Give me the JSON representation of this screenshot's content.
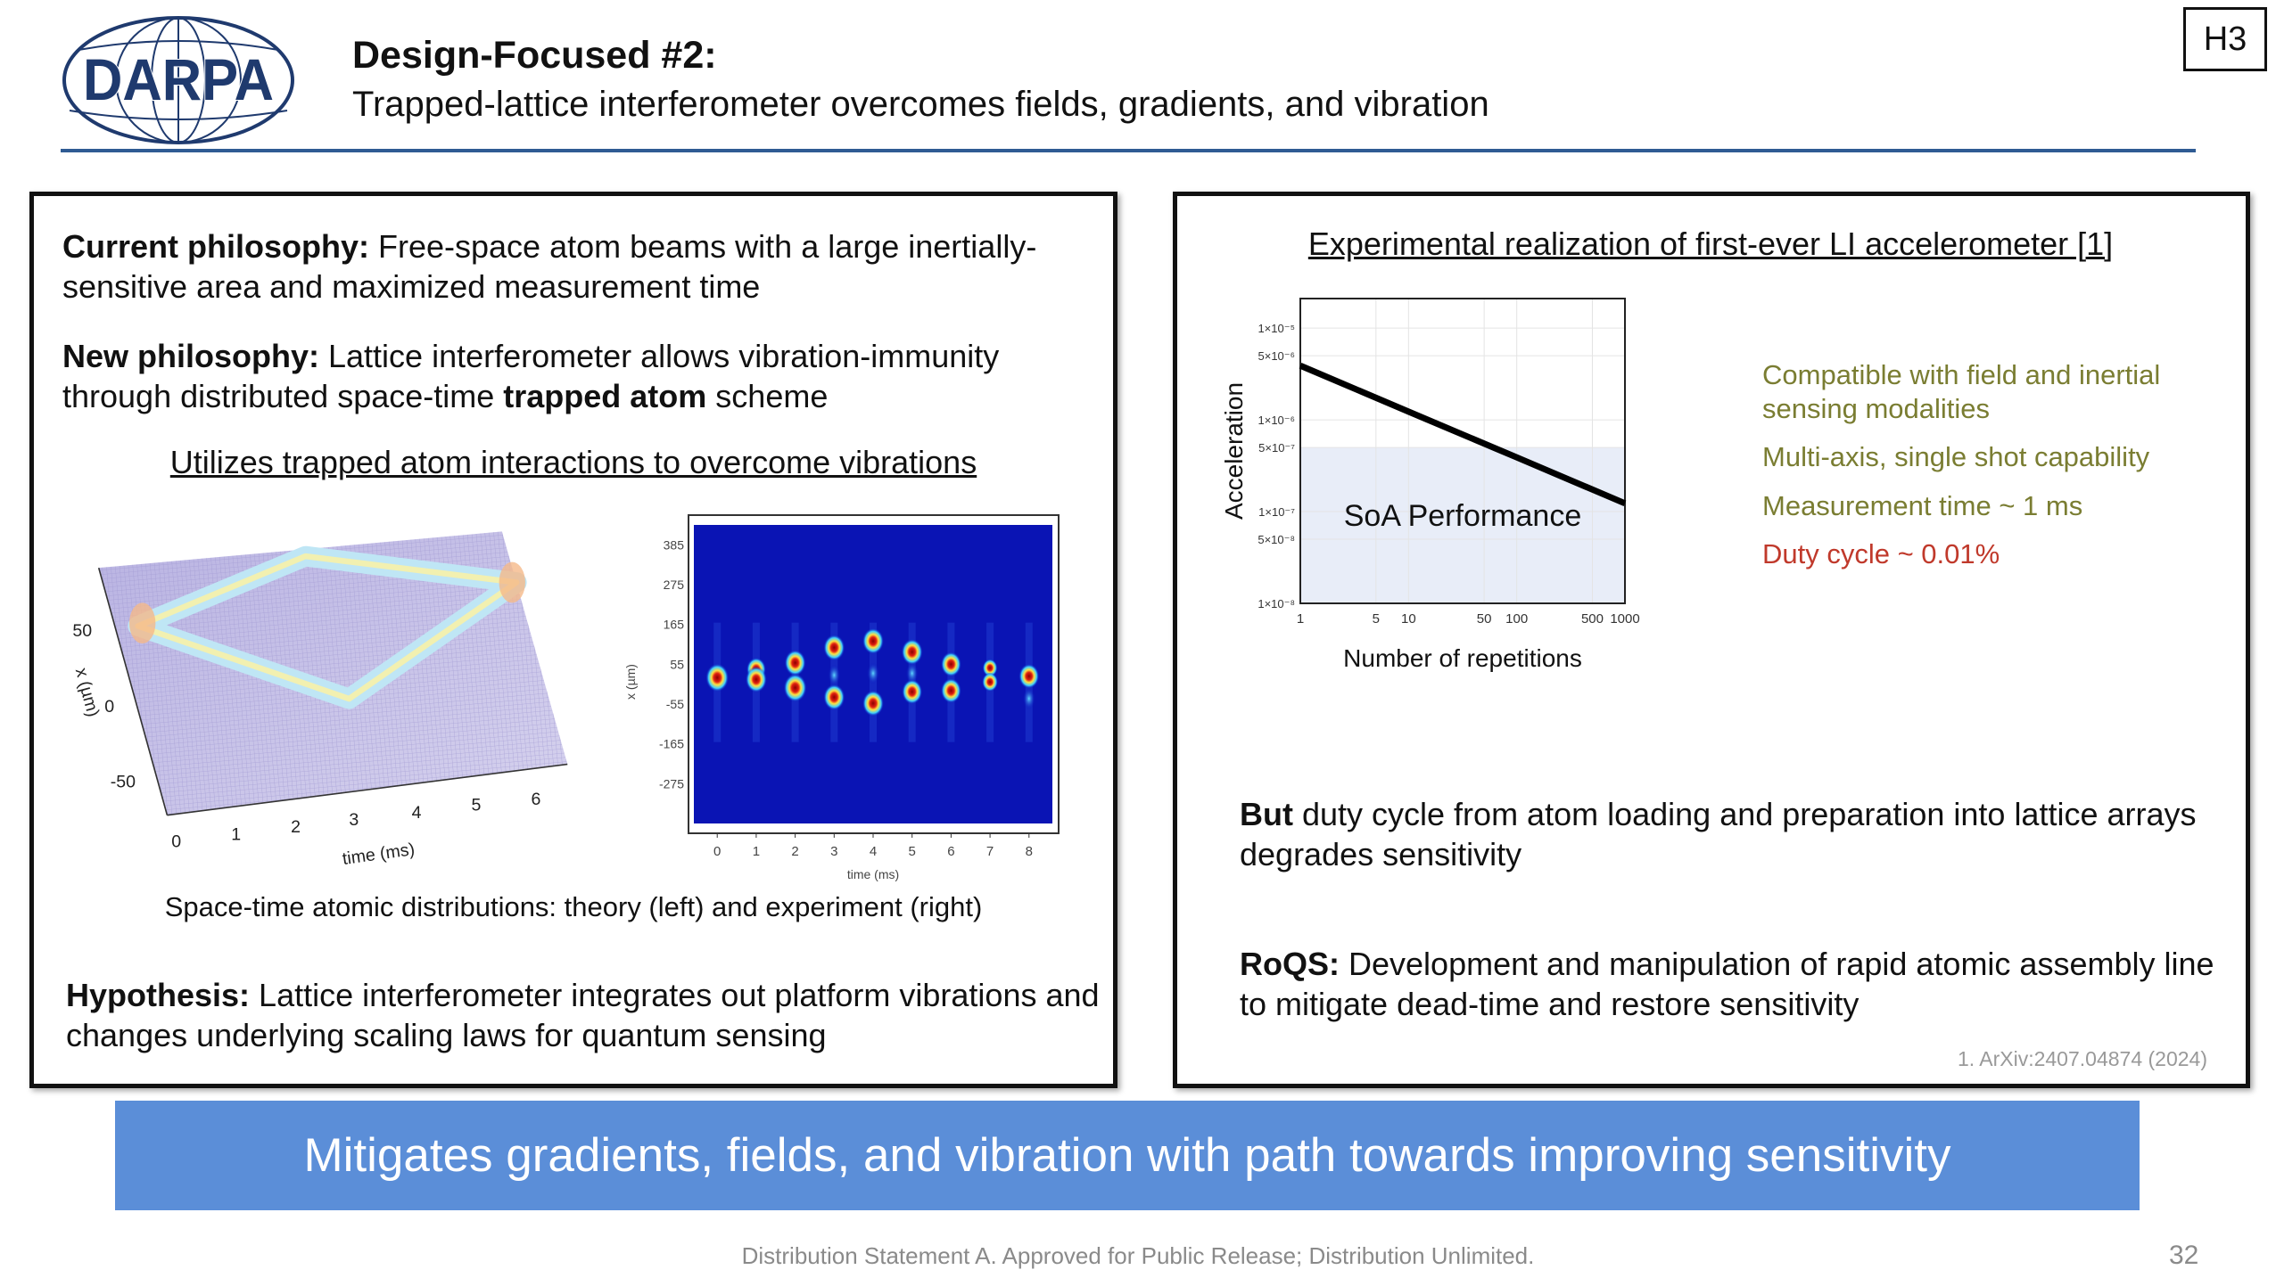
{
  "logo": {
    "text": "DARPA"
  },
  "header": {
    "title": "Design-Focused #2:",
    "subtitle": "Trapped-lattice interferometer overcomes fields, gradients, and vibration",
    "section_tag": "H3"
  },
  "left": {
    "current_label": "Current philosophy:",
    "current_text": " Free-space atom beams with a large inertially-sensitive area and maximized measurement time",
    "new_label": "New philosophy:",
    "new_text_1": " Lattice interferometer allows vibration-immunity through distributed space-time ",
    "new_bold": "trapped atom",
    "new_text_2": " scheme",
    "subheading": "Utilizes trapped atom interactions to overcome vibrations",
    "theory_plot": {
      "y_label": "x (µm)",
      "y_ticks": [
        "50",
        "0",
        "-50"
      ],
      "x_label": "time (ms)",
      "x_ticks": [
        "0",
        "1",
        "2",
        "3",
        "4",
        "5",
        "6"
      ]
    },
    "caption": "Space-time atomic distributions: theory (left) and experiment (right)",
    "hypothesis_label": "Hypothesis:",
    "hypothesis_text": " Lattice interferometer integrates out platform vibrations and changes underlying scaling laws for quantum sensing"
  },
  "right": {
    "heading": "Experimental realization of first-ever LI accelerometer [1]",
    "features": [
      {
        "text": "Compatible with field and inertial sensing modalities",
        "color": "#7a7d32"
      },
      {
        "text": "Multi-axis, single shot capability",
        "color": "#7a7d32"
      },
      {
        "text": "Measurement time ~ 1 ms",
        "color": "#7a7d32"
      },
      {
        "text": "Duty cycle ~ 0.01%",
        "color": "#c0392b"
      }
    ],
    "but_label": "But",
    "but_text": " duty cycle from atom loading and preparation into lattice arrays degrades sensitivity",
    "roqs_label": "RoQS:",
    "roqs_text": " Development and manipulation of rapid atomic assembly line to mitigate dead-time and restore sensitivity",
    "citation": "1. ArXiv:2407.04874 (2024)"
  },
  "chart_data": [
    {
      "type": "line",
      "title": "",
      "xlabel": "Number of repetitions",
      "ylabel": "Acceleration",
      "xscale": "log",
      "yscale": "log",
      "xlim": [
        1,
        1000
      ],
      "ylim": [
        1e-08,
        2.1e-05
      ],
      "x_ticks": [
        "1",
        "5",
        "10",
        "50",
        "100",
        "500",
        "1000"
      ],
      "x_tick_values": [
        1,
        5,
        10,
        50,
        100,
        500,
        1000
      ],
      "y_ticks": [
        "1×10⁻⁵",
        "5×10⁻⁶",
        "1×10⁻⁶",
        "5×10⁻⁷",
        "1×10⁻⁷",
        "5×10⁻⁸",
        "1×10⁻⁸"
      ],
      "y_tick_values": [
        1e-05,
        5e-06,
        1e-06,
        5e-07,
        1e-07,
        5e-08,
        1e-08
      ],
      "grid": true,
      "series": [
        {
          "name": "LI accelerometer",
          "x": [
            1,
            10,
            100,
            1000
          ],
          "y": [
            3.9e-06,
            1.23e-06,
            3.9e-07,
            1.23e-07
          ],
          "color": "#000000"
        }
      ],
      "shaded_region": {
        "label": "SoA Performance",
        "y_max": 5e-07,
        "color": "#e8edf8"
      }
    },
    {
      "type": "heatmap",
      "xlabel": "time (ms)",
      "ylabel": "x (µm)",
      "xlim": [
        -0.6,
        8.6
      ],
      "ylim": [
        -385,
        440
      ],
      "x_ticks": [
        "0",
        "1",
        "2",
        "3",
        "4",
        "5",
        "6",
        "7",
        "8"
      ],
      "x_tick_values": [
        0,
        1,
        2,
        3,
        4,
        5,
        6,
        7,
        8
      ],
      "y_ticks": [
        "385",
        "275",
        "165",
        "55",
        "-55",
        "-165",
        "-275"
      ],
      "y_tick_values": [
        385,
        275,
        165,
        55,
        -55,
        -165,
        -275
      ],
      "spots": [
        {
          "t": 0,
          "x": 18,
          "i": 1
        },
        {
          "t": 1,
          "x": 41,
          "i": 0.8
        },
        {
          "t": 1,
          "x": 13,
          "i": 0.9
        },
        {
          "t": 2,
          "x": 59,
          "i": 0.9
        },
        {
          "t": 2,
          "x": -10,
          "i": 1
        },
        {
          "t": 3,
          "x": 101,
          "i": 0.9
        },
        {
          "t": 3,
          "x": 25,
          "i": 0.4
        },
        {
          "t": 3,
          "x": -36,
          "i": 0.9
        },
        {
          "t": 4,
          "x": 119,
          "i": 0.9
        },
        {
          "t": 4,
          "x": 30,
          "i": 0.35
        },
        {
          "t": 4,
          "x": -53,
          "i": 0.9
        },
        {
          "t": 5,
          "x": 89,
          "i": 0.9
        },
        {
          "t": 5,
          "x": 30,
          "i": 0.35
        },
        {
          "t": 5,
          "x": -21,
          "i": 0.85
        },
        {
          "t": 6,
          "x": 55,
          "i": 0.85
        },
        {
          "t": 6,
          "x": -18,
          "i": 0.85
        },
        {
          "t": 7,
          "x": 45,
          "i": 0.55
        },
        {
          "t": 7,
          "x": 6,
          "i": 0.6
        },
        {
          "t": 8,
          "x": 22,
          "i": 0.85
        },
        {
          "t": 8,
          "x": -40,
          "i": 0.35
        }
      ]
    }
  ],
  "banner": {
    "text": "Mitigates gradients, fields, and vibration with path towards improving sensitivity",
    "color": "#5b8ed8"
  },
  "footer": {
    "text": "Distribution Statement A.  Approved for Public Release; Distribution Unlimited.",
    "page_number": "32"
  }
}
